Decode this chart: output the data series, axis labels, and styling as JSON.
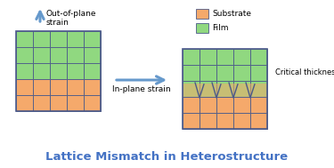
{
  "title": "Lattice Mismatch in Heterostructure",
  "title_color": "#4472C4",
  "title_fontsize": 9.5,
  "substrate_color": "#F5A96B",
  "film_color": "#90D880",
  "grid_color": "#4B5A8A",
  "arrow_color": "#6699CC",
  "background": "#FFFFFF",
  "legend_substrate": "Substrate",
  "legend_film": "Film",
  "label_out_of_plane": "Out-of-plane\nstrain",
  "label_in_plane": "In-plane strain",
  "label_critical": "Critical thickness",
  "ncols": 5,
  "nrows": 5,
  "sub_rows": 2,
  "film_rows": 3
}
